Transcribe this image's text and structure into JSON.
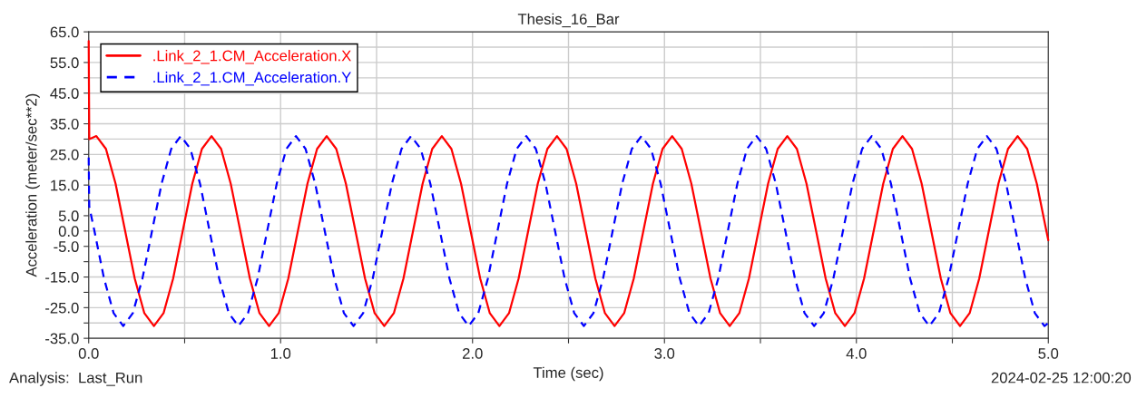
{
  "chart_data": {
    "type": "line",
    "title": "Thesis_16_Bar",
    "xlabel": "Time (sec)",
    "ylabel": "Acceleration (meter/sec**2)",
    "annotations": [
      "Analysis:  Last_Run",
      "2024-02-25 12:00:20"
    ],
    "xlim": [
      0,
      5
    ],
    "ylim": [
      -35,
      65
    ],
    "xticks": [
      {
        "value": 0,
        "label": "0.0"
      },
      {
        "value": 0.5,
        "label": null
      },
      {
        "value": 1,
        "label": "1.0"
      },
      {
        "value": 1.5,
        "label": null
      },
      {
        "value": 2,
        "label": "2.0"
      },
      {
        "value": 2.5,
        "label": null
      },
      {
        "value": 3,
        "label": "3.0"
      },
      {
        "value": 3.5,
        "label": null
      },
      {
        "value": 4,
        "label": "4.0"
      },
      {
        "value": 4.5,
        "label": null
      },
      {
        "value": 5,
        "label": "5.0"
      }
    ],
    "yticks": [
      {
        "value": -35,
        "label": "-35.0"
      },
      {
        "value": -30,
        "label": null
      },
      {
        "value": -25,
        "label": "-25.0"
      },
      {
        "value": -20,
        "label": null
      },
      {
        "value": -15,
        "label": "-15.0"
      },
      {
        "value": -10,
        "label": null
      },
      {
        "value": -5,
        "label": "-5.0"
      },
      {
        "value": 0,
        "label": "0.0"
      },
      {
        "value": 5,
        "label": "5.0"
      },
      {
        "value": 10,
        "label": null
      },
      {
        "value": 15,
        "label": "15.0"
      },
      {
        "value": 20,
        "label": null
      },
      {
        "value": 25,
        "label": "25.0"
      },
      {
        "value": 30,
        "label": null
      },
      {
        "value": 35,
        "label": "35.0"
      },
      {
        "value": 40,
        "label": null
      },
      {
        "value": 45,
        "label": "45.0"
      },
      {
        "value": 50,
        "label": null
      },
      {
        "value": 55,
        "label": "55.0"
      },
      {
        "value": 60,
        "label": null
      },
      {
        "value": 65,
        "label": "65.0"
      }
    ],
    "grid": true,
    "legend": "top left",
    "marker": "none",
    "series": [
      {
        "name": ".Link_2_1.CM_Acceleration.X",
        "color": "#ff0000",
        "line_style": "solid",
        "x": [
          0,
          0.003,
          0.04,
          0.09,
          0.14,
          0.19,
          0.24,
          0.29,
          0.34,
          0.39,
          0.44,
          0.49,
          0.54,
          0.59,
          0.64,
          0.69,
          0.74,
          0.79,
          0.84,
          0.89,
          0.94,
          0.99,
          1.04,
          1.09,
          1.14,
          1.19,
          1.24,
          1.29,
          1.34,
          1.39,
          1.44,
          1.49,
          1.54,
          1.59,
          1.64,
          1.69,
          1.74,
          1.79,
          1.84,
          1.89,
          1.94,
          1.99,
          2.04,
          2.09,
          2.14,
          2.19,
          2.24,
          2.29,
          2.34,
          2.39,
          2.44,
          2.49,
          2.54,
          2.59,
          2.64,
          2.69,
          2.74,
          2.79,
          2.84,
          2.89,
          2.94,
          2.99,
          3.04,
          3.09,
          3.14,
          3.19,
          3.24,
          3.29,
          3.34,
          3.39,
          3.44,
          3.49,
          3.54,
          3.59,
          3.64,
          3.69,
          3.74,
          3.79,
          3.84,
          3.89,
          3.94,
          3.99,
          4.04,
          4.09,
          4.14,
          4.19,
          4.24,
          4.29,
          4.34,
          4.39,
          4.44,
          4.49,
          4.54,
          4.59,
          4.64,
          4.69,
          4.74,
          4.79,
          4.84,
          4.89,
          4.94,
          4.99,
          5.0
        ],
        "values": [
          62,
          30,
          31,
          26.8,
          15.5,
          0,
          -15.5,
          -26.8,
          -31,
          -26.8,
          -15.5,
          0,
          15.5,
          26.8,
          31,
          26.8,
          15.5,
          0,
          -15.5,
          -26.8,
          -31,
          -26.8,
          -15.5,
          0,
          15.5,
          26.8,
          31,
          26.8,
          15.5,
          0,
          -15.5,
          -26.8,
          -31,
          -26.8,
          -15.5,
          0,
          15.5,
          26.8,
          31,
          26.8,
          15.5,
          0,
          -15.5,
          -26.8,
          -31,
          -26.8,
          -15.5,
          0,
          15.5,
          26.8,
          31,
          26.8,
          15.5,
          0,
          -15.5,
          -26.8,
          -31,
          -26.8,
          -15.5,
          0,
          15.5,
          26.8,
          31,
          26.8,
          15.5,
          0,
          -15.5,
          -26.8,
          -31,
          -26.8,
          -15.5,
          0,
          15.5,
          26.8,
          31,
          26.8,
          15.5,
          0,
          -15.5,
          -26.8,
          -31,
          -26.8,
          -15.5,
          0,
          15.5,
          26.8,
          31,
          26.8,
          15.5,
          0,
          -15.5,
          -26.8,
          -31,
          -26.8,
          -15.5,
          0,
          15.5,
          26.8,
          31,
          26.8,
          15.5,
          0,
          -3
        ]
      },
      {
        "name": ".Link_2_1.CM_Acceleration.Y",
        "color": "#0000ff",
        "line_style": "dashed",
        "x": [
          0,
          0.003,
          0.03,
          0.08,
          0.13,
          0.18,
          0.23,
          0.28,
          0.33,
          0.38,
          0.43,
          0.48,
          0.53,
          0.58,
          0.63,
          0.68,
          0.73,
          0.78,
          0.83,
          0.88,
          0.93,
          0.98,
          1.03,
          1.08,
          1.13,
          1.18,
          1.23,
          1.28,
          1.33,
          1.38,
          1.43,
          1.48,
          1.53,
          1.58,
          1.63,
          1.68,
          1.73,
          1.78,
          1.83,
          1.88,
          1.93,
          1.98,
          2.03,
          2.08,
          2.13,
          2.18,
          2.23,
          2.28,
          2.33,
          2.38,
          2.43,
          2.48,
          2.53,
          2.58,
          2.63,
          2.68,
          2.73,
          2.78,
          2.83,
          2.88,
          2.93,
          2.98,
          3.03,
          3.08,
          3.13,
          3.18,
          3.23,
          3.28,
          3.33,
          3.38,
          3.43,
          3.48,
          3.53,
          3.58,
          3.63,
          3.68,
          3.73,
          3.78,
          3.83,
          3.88,
          3.93,
          3.98,
          4.03,
          4.08,
          4.13,
          4.18,
          4.23,
          4.28,
          4.33,
          4.38,
          4.43,
          4.48,
          4.53,
          4.58,
          4.63,
          4.68,
          4.73,
          4.78,
          4.83,
          4.88,
          4.93,
          4.98,
          5.0
        ],
        "values": [
          24,
          8,
          0,
          -15.5,
          -26.8,
          -31,
          -26.8,
          -15.5,
          0,
          15.5,
          26.8,
          31,
          26.8,
          15.5,
          0,
          -15.5,
          -26.8,
          -31,
          -26.8,
          -15.5,
          0,
          15.5,
          26.8,
          31,
          26.8,
          15.5,
          0,
          -15.5,
          -26.8,
          -31,
          -26.8,
          -15.5,
          0,
          15.5,
          26.8,
          31,
          26.8,
          15.5,
          0,
          -15.5,
          -26.8,
          -31,
          -26.8,
          -15.5,
          0,
          15.5,
          26.8,
          31,
          26.8,
          15.5,
          0,
          -15.5,
          -26.8,
          -31,
          -26.8,
          -15.5,
          0,
          15.5,
          26.8,
          31,
          26.8,
          15.5,
          0,
          -15.5,
          -26.8,
          -31,
          -26.8,
          -15.5,
          0,
          15.5,
          26.8,
          31,
          26.8,
          15.5,
          0,
          -15.5,
          -26.8,
          -31,
          -26.8,
          -15.5,
          0,
          15.5,
          26.8,
          31,
          26.8,
          15.5,
          0,
          -15.5,
          -26.8,
          -31,
          -26.8,
          -15.5,
          0,
          15.5,
          26.8,
          31,
          26.8,
          15.5,
          0,
          -15.5,
          -26.8,
          -31,
          -30
        ]
      }
    ]
  }
}
